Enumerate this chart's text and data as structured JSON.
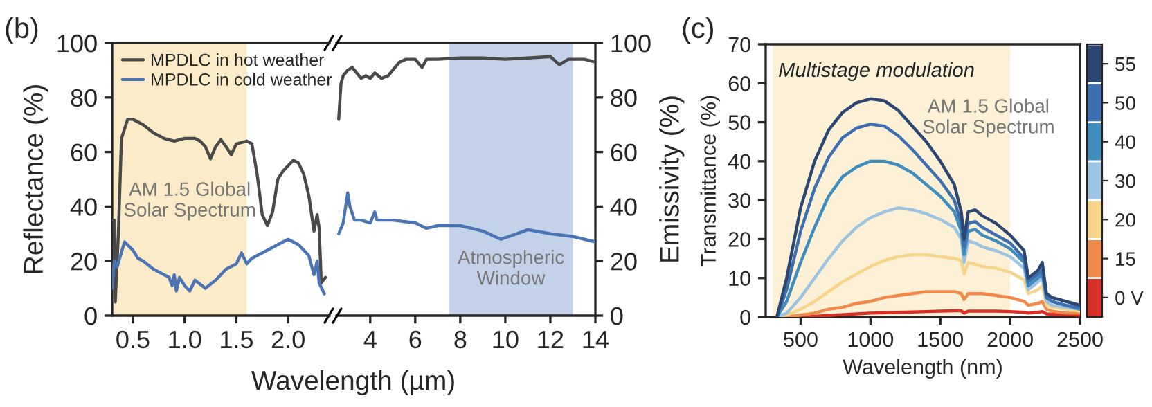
{
  "chart_data": [
    {
      "type": "line",
      "title": "(b)",
      "ylabel": "Reflectance (%)",
      "xlabel": "Wavelength (µm)",
      "xlim": [
        0.3,
        2.4
      ],
      "xticks": [
        0.5,
        {
          "value": 1.0,
          "label": "1.0"
        },
        1.5,
        {
          "value": 2.0,
          "label": "2.0"
        }
      ],
      "ylim": [
        0,
        100
      ],
      "yticks": [
        0,
        20,
        40,
        60,
        80,
        100
      ],
      "legend": "top left",
      "grid": false,
      "bands": [
        {
          "axis": "x",
          "from": 0.3,
          "to": 1.6,
          "label": "AM 1.5 Global\nSolar Spectrum",
          "color": "#fbe3b0"
        }
      ],
      "series": [
        {
          "name": "MPDLC in hot weather",
          "color": "#4a4a4a",
          "x": [
            0.3,
            0.32,
            0.33,
            0.36,
            0.39,
            0.45,
            0.5,
            0.6,
            0.7,
            0.8,
            0.9,
            1.0,
            1.1,
            1.15,
            1.2,
            1.25,
            1.3,
            1.35,
            1.4,
            1.45,
            1.5,
            1.6,
            1.65,
            1.7,
            1.75,
            1.8,
            1.85,
            1.9,
            1.95,
            2.0,
            2.05,
            2.1,
            2.15,
            2.2,
            2.25,
            2.28,
            2.3,
            2.32,
            2.36
          ],
          "values": [
            35,
            35,
            5,
            30,
            65,
            72,
            72,
            70,
            67,
            65,
            64,
            65,
            65,
            64,
            62,
            57.5,
            62,
            64.5,
            62,
            59,
            63,
            64,
            63,
            52,
            37,
            33,
            38,
            50,
            53,
            55,
            57,
            56,
            52,
            44,
            31,
            37,
            32,
            12,
            14
          ]
        },
        {
          "name": "MPDLC in cold weather",
          "color": "#4a74b4",
          "x": [
            0.3,
            0.32,
            0.35,
            0.38,
            0.42,
            0.5,
            0.55,
            0.6,
            0.7,
            0.8,
            0.85,
            0.88,
            0.9,
            0.92,
            0.95,
            1.0,
            1.05,
            1.1,
            1.2,
            1.3,
            1.4,
            1.5,
            1.55,
            1.6,
            1.65,
            1.7,
            1.8,
            1.9,
            2.0,
            2.1,
            2.2,
            2.25,
            2.28,
            2.3,
            2.35
          ],
          "values": [
            10,
            20,
            18,
            22,
            27,
            24,
            21,
            20,
            17,
            15,
            14,
            11,
            15,
            9,
            14,
            11,
            9,
            13,
            10,
            13,
            17,
            19,
            23,
            19,
            21,
            22,
            24,
            26,
            28,
            26,
            22,
            15,
            20,
            12,
            8
          ]
        }
      ]
    },
    {
      "type": "line",
      "y2label": "Emissivity (%)",
      "xlim": [
        2.5,
        14
      ],
      "xticks": [
        4,
        6,
        8,
        10,
        12,
        14
      ],
      "y2lim": [
        0,
        100
      ],
      "y2ticks": [
        0,
        20,
        40,
        60,
        80,
        100
      ],
      "grid": false,
      "bands": [
        {
          "axis": "x",
          "from": 7.5,
          "to": 13,
          "label": "Atmospheric\nWindow",
          "color": "#aabfe0"
        }
      ],
      "series": [
        {
          "color": "#4a4a4a",
          "axis": "y2",
          "x": [
            2.6,
            2.7,
            2.8,
            3.0,
            3.2,
            3.4,
            3.6,
            3.8,
            4.0,
            4.2,
            4.5,
            4.8,
            5.0,
            5.3,
            5.6,
            6.0,
            6.3,
            6.5,
            7,
            8,
            9,
            10,
            11,
            12,
            12.4,
            12.8,
            13.5,
            14
          ],
          "values": [
            72,
            85,
            88,
            90,
            91,
            89,
            87,
            88,
            87,
            89,
            87,
            88,
            90,
            93,
            94,
            94,
            91,
            94,
            94,
            94.5,
            94.5,
            94,
            94.5,
            95,
            92,
            94,
            94,
            93
          ]
        },
        {
          "color": "#4a74b4",
          "axis": "y2",
          "x": [
            2.6,
            2.8,
            3.0,
            3.1,
            3.3,
            3.6,
            4.0,
            4.2,
            4.3,
            5,
            6,
            6.5,
            7,
            8,
            9,
            9.8,
            10.5,
            11,
            12,
            13,
            14
          ],
          "values": [
            30,
            34,
            45,
            40,
            35,
            35,
            34,
            38,
            35,
            35,
            34,
            32,
            33,
            33,
            31,
            28,
            30,
            31.5,
            30,
            29,
            27
          ]
        }
      ]
    },
    {
      "type": "line",
      "title": "(c)",
      "xlabel": "Wavelength (nm)",
      "ylabel": "Transmittance (%)",
      "xlim": [
        250,
        2500
      ],
      "xticks": [
        500,
        1000,
        1500,
        2000,
        2500
      ],
      "ylim": [
        0,
        70
      ],
      "yticks": [
        0,
        10,
        20,
        30,
        40,
        50,
        60,
        70
      ],
      "legend": "right",
      "grid": false,
      "annotations": [
        "Multistage modulation"
      ],
      "bands": [
        {
          "axis": "x",
          "from": 300,
          "to": 2000,
          "label": "AM 1.5 Global\nSolar Spectrum",
          "color": "#fbe9c4"
        }
      ],
      "x": [
        330,
        400,
        500,
        600,
        700,
        800,
        900,
        1000,
        1100,
        1200,
        1300,
        1400,
        1500,
        1600,
        1650,
        1670,
        1700,
        1750,
        1800,
        1900,
        2000,
        2100,
        2130,
        2200,
        2230,
        2260,
        2300,
        2400,
        2500
      ],
      "series": [
        {
          "name": "0 V",
          "color": "#d73027",
          "values": [
            0,
            0,
            0,
            0.2,
            0.4,
            0.6,
            0.8,
            1,
            1.1,
            1.2,
            1.3,
            1.4,
            1.5,
            1.6,
            1.6,
            1,
            1.5,
            1.5,
            1.5,
            1.5,
            1.4,
            1.2,
            1,
            1.2,
            1.4,
            0.8,
            0.7,
            0.6,
            0.5
          ]
        },
        {
          "name": "15",
          "color": "#f08a4b",
          "values": [
            0,
            0,
            0.5,
            1,
            2,
            2.5,
            3.5,
            4,
            5,
            5.5,
            6,
            6.5,
            6.5,
            6.5,
            6,
            4.5,
            6,
            6,
            6,
            5.5,
            5,
            4,
            3,
            3.5,
            4,
            2,
            1.5,
            1,
            1
          ]
        },
        {
          "name": "20",
          "color": "#f6d58a",
          "values": [
            0,
            0.5,
            2,
            4,
            6.5,
            9,
            11,
            13,
            14.5,
            15.5,
            16,
            16,
            15.5,
            15,
            14.5,
            11,
            14,
            13.5,
            13,
            12.5,
            11.5,
            9.5,
            6,
            7,
            8,
            3,
            2.5,
            2,
            1.5
          ]
        },
        {
          "name": "30",
          "color": "#9cc3df",
          "values": [
            0,
            1,
            5,
            10,
            15,
            19.5,
            23,
            25.5,
            27,
            28,
            27.5,
            26.5,
            25,
            23,
            20,
            14,
            19.5,
            19,
            18,
            17,
            15.5,
            12.5,
            7,
            9,
            10,
            4,
            3,
            2.5,
            2
          ]
        },
        {
          "name": "40",
          "color": "#3f8dbd",
          "values": [
            0,
            4,
            14,
            23,
            31,
            36,
            38.5,
            40,
            40,
            39,
            37,
            34,
            31,
            27,
            22,
            16,
            22,
            22.5,
            21,
            19.5,
            17.5,
            14,
            8,
            10,
            11,
            5,
            4,
            3,
            2
          ]
        },
        {
          "name": "50",
          "color": "#3d6fb0",
          "values": [
            0,
            7,
            22,
            33,
            41,
            46,
            48.5,
            49.5,
            49,
            46.5,
            43,
            39,
            35,
            30,
            24,
            18,
            24,
            24.5,
            23,
            21,
            19,
            15,
            9,
            11,
            12,
            5,
            4,
            3,
            2.5
          ]
        },
        {
          "name": "55",
          "color": "#2b4670",
          "values": [
            0,
            10,
            28,
            40,
            48,
            52.5,
            55,
            56,
            55.5,
            53,
            49,
            45,
            40,
            34,
            27,
            20,
            27,
            27.5,
            26,
            24,
            21,
            17,
            10,
            12,
            14,
            6,
            5,
            4,
            3
          ]
        }
      ]
    }
  ]
}
